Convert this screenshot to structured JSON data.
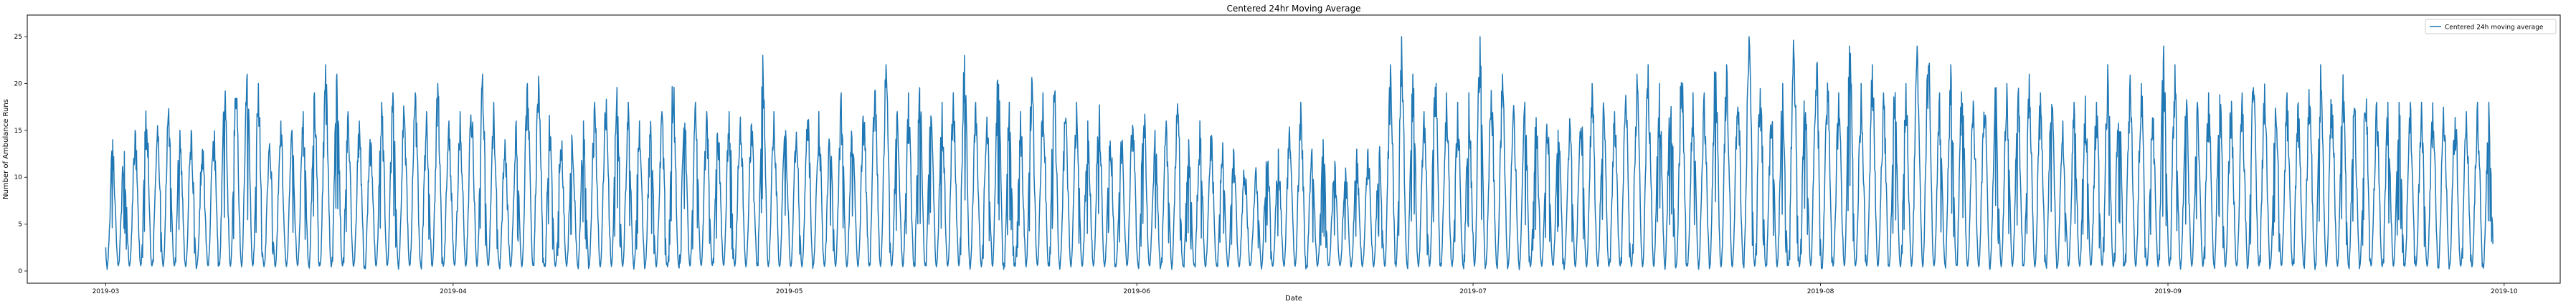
{
  "chart_data": {
    "type": "line",
    "title": "Centered 24hr Moving Average",
    "xlabel": "Date",
    "ylabel": "Number of Ambulance Runs",
    "x_start": "2019-03-01",
    "x_end": "2019-09-30",
    "xlim": [
      "2019-02-22",
      "2019-10-06"
    ],
    "ylim": [
      -1.3,
      27.3
    ],
    "x_ticks": [
      "2019-03",
      "2019-04",
      "2019-05",
      "2019-06",
      "2019-07",
      "2019-08",
      "2019-09",
      "2019-10"
    ],
    "y_ticks": [
      "0",
      "5",
      "10",
      "15",
      "20",
      "25"
    ],
    "grid": false,
    "legend_position": "upper right",
    "series": [
      {
        "name": "Centered 24h moving average",
        "color": "#1f77b4",
        "daily_peak": [
          14,
          13,
          15,
          18,
          17,
          18,
          16,
          15,
          14,
          16,
          21,
          20,
          21,
          20,
          14,
          16,
          15,
          17,
          19,
          22,
          21,
          17,
          16,
          15,
          18,
          19,
          18,
          19,
          17,
          20,
          16,
          17,
          19,
          21,
          18,
          14,
          16,
          20,
          21,
          17,
          15,
          16,
          16,
          18,
          19,
          20,
          18,
          16,
          16,
          17,
          22,
          19,
          18,
          17,
          16,
          17,
          18,
          16,
          23,
          17,
          17,
          16,
          18,
          17,
          16,
          19,
          17,
          18,
          21,
          22,
          17,
          19,
          20,
          19,
          18,
          19,
          23,
          18,
          17,
          23,
          18,
          17,
          22,
          19,
          21,
          17,
          18,
          16,
          19,
          16,
          15,
          17,
          18,
          15,
          16,
          19,
          14,
          16,
          15,
          14,
          13,
          12,
          12,
          14,
          13,
          16,
          18,
          13,
          14,
          12,
          11,
          13,
          13,
          14,
          22,
          25,
          21,
          17,
          22,
          19,
          18,
          19,
          25,
          20,
          21,
          18,
          19,
          17,
          17,
          16,
          17,
          18,
          20,
          19,
          17,
          19,
          21,
          22,
          20,
          21,
          23,
          19,
          19,
          23,
          22,
          20,
          25,
          21,
          18,
          20,
          26,
          20,
          24,
          21,
          19,
          26,
          20,
          22,
          19,
          21,
          20,
          24,
          24,
          19,
          22,
          21,
          19,
          20,
          20,
          20,
          20,
          21,
          19,
          21,
          16,
          18,
          19,
          18,
          22,
          20,
          21,
          20,
          18,
          24,
          22,
          19,
          18,
          19,
          20,
          19,
          19,
          21,
          20,
          18,
          19,
          18,
          20,
          22,
          20,
          21,
          19,
          21,
          18,
          18,
          19,
          18,
          18,
          18,
          19,
          18,
          17,
          18,
          18,
          17,
          20,
          18
        ]
      }
    ]
  }
}
